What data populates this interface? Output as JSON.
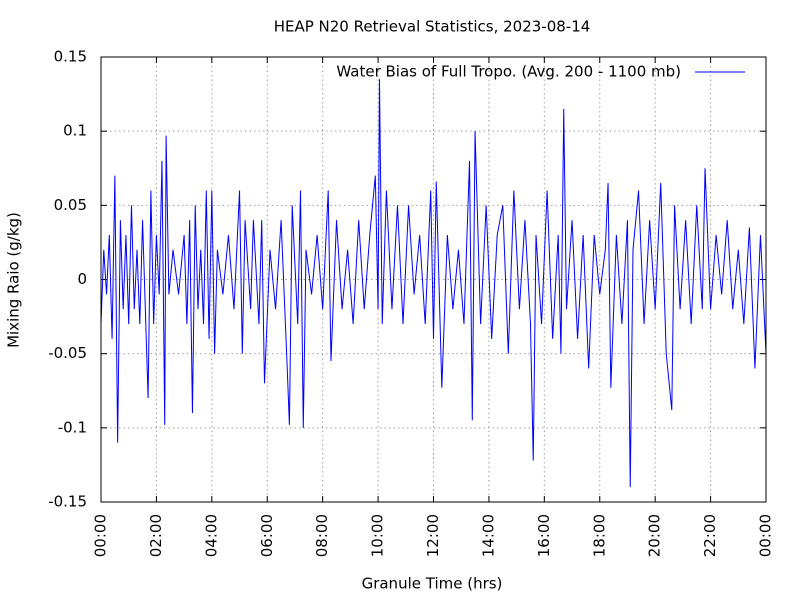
{
  "chart_data": {
    "type": "line",
    "title": "HEAP N20 Retrieval Statistics, 2023-08-14",
    "x_label": "Granule Time (hrs)",
    "y_label": "Mixing Raio (g/kg)",
    "xlim": [
      0,
      24
    ],
    "ylim": [
      -0.15,
      0.15
    ],
    "xticks": [
      {
        "value": 0,
        "label": "00:00"
      },
      {
        "value": 2,
        "label": "02:00"
      },
      {
        "value": 4,
        "label": "04:00"
      },
      {
        "value": 6,
        "label": "06:00"
      },
      {
        "value": 8,
        "label": "08:00"
      },
      {
        "value": 10,
        "label": "10:00"
      },
      {
        "value": 12,
        "label": "12:00"
      },
      {
        "value": 14,
        "label": "14:00"
      },
      {
        "value": 16,
        "label": "16:00"
      },
      {
        "value": 18,
        "label": "18:00"
      },
      {
        "value": 20,
        "label": "20:00"
      },
      {
        "value": 22,
        "label": "22:00"
      },
      {
        "value": 24,
        "label": "00:00"
      }
    ],
    "yticks": [
      -0.15,
      -0.1,
      -0.05,
      0,
      0.05,
      0.1,
      0.15
    ],
    "grid": true,
    "legend": "top-right",
    "x": [
      0.0,
      0.1,
      0.2,
      0.3,
      0.4,
      0.5,
      0.6,
      0.7,
      0.8,
      0.9,
      1.0,
      1.1,
      1.2,
      1.3,
      1.4,
      1.5,
      1.6,
      1.7,
      1.8,
      1.9,
      2.0,
      2.1,
      2.2,
      2.3,
      2.35,
      2.45,
      2.6,
      2.8,
      3.0,
      3.1,
      3.2,
      3.3,
      3.4,
      3.5,
      3.6,
      3.7,
      3.8,
      3.9,
      4.0,
      4.1,
      4.2,
      4.4,
      4.6,
      4.8,
      5.0,
      5.1,
      5.2,
      5.4,
      5.5,
      5.7,
      5.8,
      5.9,
      6.1,
      6.3,
      6.5,
      6.7,
      6.8,
      6.9,
      7.1,
      7.2,
      7.3,
      7.4,
      7.6,
      7.8,
      8.0,
      8.2,
      8.3,
      8.5,
      8.7,
      8.9,
      9.1,
      9.3,
      9.5,
      9.7,
      9.9,
      10.0,
      10.05,
      10.15,
      10.3,
      10.5,
      10.7,
      10.9,
      11.1,
      11.3,
      11.5,
      11.7,
      11.9,
      12.0,
      12.1,
      12.3,
      12.5,
      12.7,
      12.9,
      13.1,
      13.3,
      13.4,
      13.5,
      13.7,
      13.9,
      14.1,
      14.3,
      14.5,
      14.7,
      14.9,
      15.1,
      15.3,
      15.5,
      15.6,
      15.7,
      15.9,
      16.1,
      16.3,
      16.5,
      16.6,
      16.7,
      16.8,
      17.0,
      17.2,
      17.4,
      17.6,
      17.8,
      18.0,
      18.2,
      18.3,
      18.4,
      18.6,
      18.8,
      19.0,
      19.1,
      19.2,
      19.4,
      19.6,
      19.8,
      20.0,
      20.2,
      20.4,
      20.6,
      20.7,
      20.9,
      21.1,
      21.3,
      21.5,
      21.7,
      21.8,
      22.0,
      22.2,
      22.4,
      22.6,
      22.8,
      23.0,
      23.2,
      23.4,
      23.6,
      23.8,
      24.0
    ],
    "series": [
      {
        "name": "Water Bias of Full Tropo. (Avg. 200 - 1100 mb)",
        "color": "#0000ff",
        "values": [
          -0.03,
          0.02,
          -0.01,
          0.03,
          -0.04,
          0.07,
          -0.11,
          0.04,
          -0.02,
          0.03,
          -0.03,
          0.05,
          -0.02,
          0.02,
          -0.03,
          0.04,
          -0.02,
          -0.08,
          0.06,
          -0.03,
          0.03,
          -0.01,
          0.08,
          -0.098,
          0.097,
          -0.01,
          0.02,
          -0.01,
          0.03,
          -0.03,
          0.04,
          -0.09,
          0.05,
          -0.02,
          0.02,
          -0.03,
          0.06,
          -0.04,
          0.06,
          -0.05,
          0.02,
          -0.01,
          0.03,
          -0.02,
          0.06,
          -0.05,
          0.04,
          -0.02,
          0.04,
          -0.03,
          0.04,
          -0.07,
          0.02,
          -0.02,
          0.04,
          -0.05,
          -0.098,
          0.05,
          -0.03,
          0.06,
          -0.1,
          0.02,
          -0.01,
          0.03,
          -0.02,
          0.06,
          -0.055,
          0.04,
          -0.02,
          0.02,
          -0.03,
          0.04,
          -0.02,
          0.03,
          0.07,
          -0.02,
          0.135,
          -0.03,
          0.06,
          -0.02,
          0.05,
          -0.03,
          0.05,
          -0.01,
          0.03,
          -0.03,
          0.06,
          -0.04,
          0.066,
          -0.073,
          0.03,
          -0.02,
          0.02,
          -0.03,
          0.08,
          -0.095,
          0.1,
          -0.03,
          0.05,
          -0.04,
          0.03,
          0.05,
          -0.05,
          0.06,
          -0.02,
          0.04,
          -0.03,
          -0.122,
          0.03,
          -0.03,
          0.06,
          -0.04,
          0.03,
          -0.05,
          0.115,
          -0.02,
          0.04,
          -0.04,
          0.03,
          -0.06,
          0.03,
          -0.01,
          0.02,
          0.065,
          -0.073,
          0.03,
          -0.03,
          0.04,
          -0.14,
          0.02,
          0.06,
          -0.03,
          0.04,
          -0.02,
          0.065,
          -0.05,
          -0.088,
          0.05,
          -0.02,
          0.04,
          -0.03,
          0.05,
          -0.02,
          0.075,
          -0.02,
          0.03,
          -0.01,
          0.04,
          -0.02,
          0.02,
          -0.03,
          0.035,
          -0.06,
          0.03,
          -0.05
        ]
      }
    ]
  }
}
